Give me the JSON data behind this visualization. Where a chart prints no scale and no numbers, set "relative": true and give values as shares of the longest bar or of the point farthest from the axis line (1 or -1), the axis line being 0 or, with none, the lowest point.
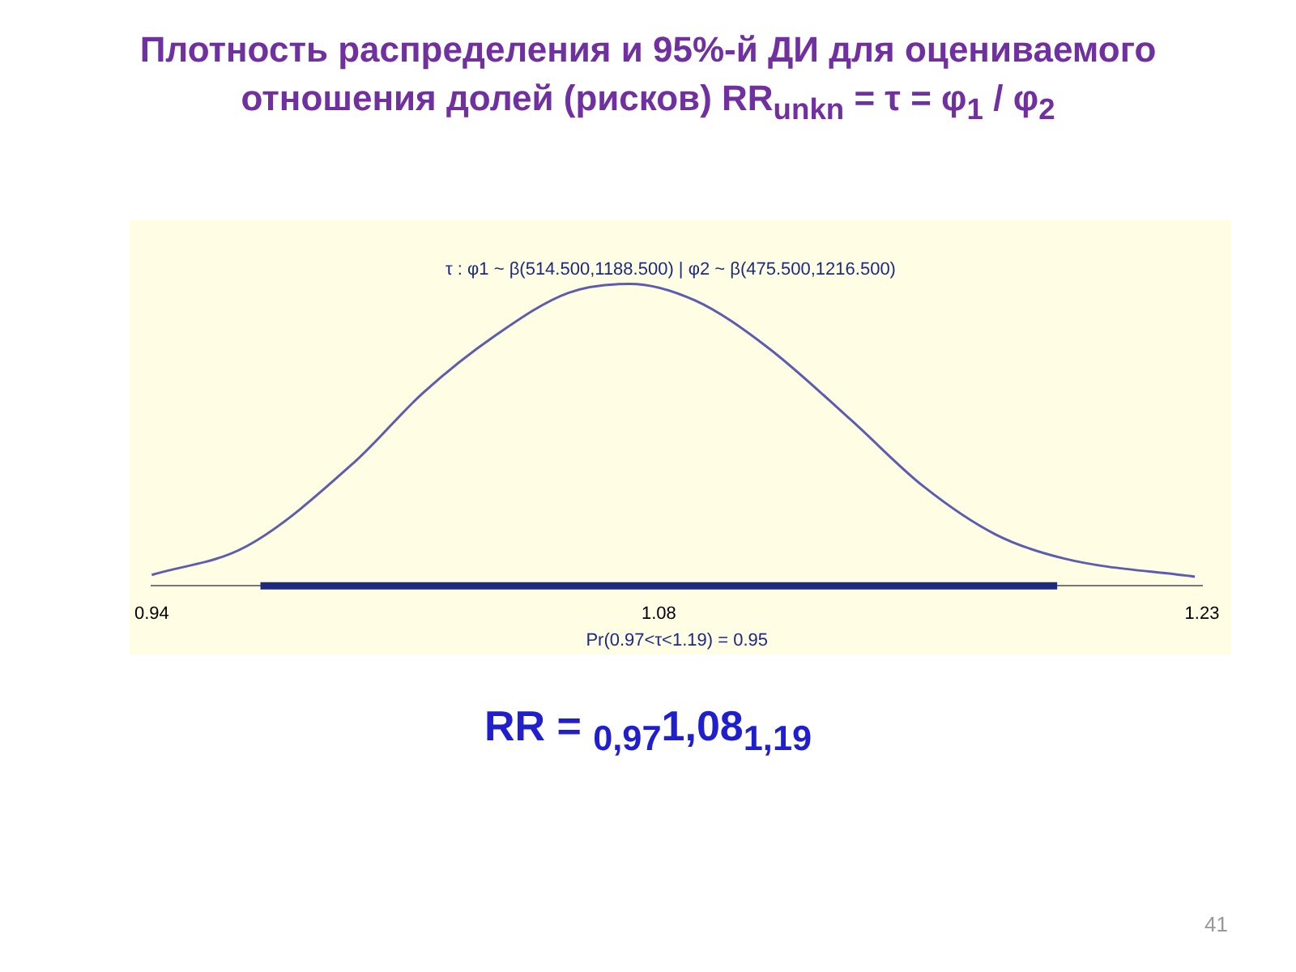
{
  "chart_data": {
    "type": "line",
    "title": "Плотность распределения и 95%-й ДИ для оцениваемого отношения долей (рисков) RR$_{unkn}$ = τ = φ$_{1}$ / φ$_{2}$",
    "subtitle": "τ : φ1 ~ β(514.500,1188.500) | φ2 ~ β(475.500,1216.500)",
    "xlabel": "Pr(0.97<τ<1.19) = 0.95",
    "series": [
      {
        "color": "#5c5cb0",
        "x": [
          0.94,
          0.966,
          0.996,
          1.015,
          1.035,
          1.055,
          1.072,
          1.09,
          1.11,
          1.133,
          1.153,
          1.173,
          1.192,
          1.228
        ],
        "values": [
          0.036,
          0.13,
          0.41,
          0.64,
          0.83,
          0.97,
          1,
          0.945,
          0.79,
          0.55,
          0.33,
          0.17,
          0.09,
          0.03
        ]
      },
      {
        "color": "#1c2a80",
        "x": [
          0.97,
          1.19
        ],
        "values": [
          0,
          0
        ]
      }
    ],
    "relative": true,
    "marker": "none",
    "line_style": "solid",
    "xlim": [
      0.94,
      1.23
    ],
    "xticks": [
      0.94,
      1.08,
      1.23
    ],
    "grid": false,
    "legend": false,
    "annotations": [
      "RR = $_{0,97}$1,08$_{1,19}$",
      "41"
    ]
  }
}
